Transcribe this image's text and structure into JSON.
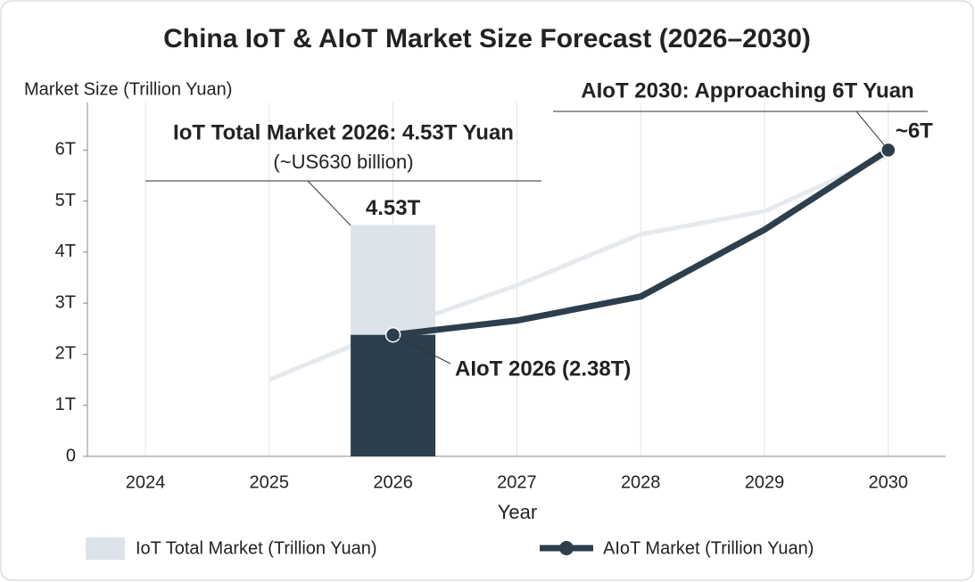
{
  "chart_data": {
    "type": "bar-line",
    "title": "China IoT & AIoT Market Size Forecast (2026–2030)",
    "y_label": "Market Size (Trillion Yuan)",
    "x_label": "Year",
    "categories": [
      "2024",
      "2025",
      "2026",
      "2027",
      "2028",
      "2029",
      "2030"
    ],
    "ylim": [
      0,
      6.6
    ],
    "yticks": [
      0,
      {
        "value": 1,
        "label": "1T"
      },
      {
        "value": 2,
        "label": "2T"
      },
      {
        "value": 3,
        "label": "3T"
      },
      {
        "value": 4,
        "label": "4T"
      },
      {
        "value": 5,
        "label": "5T"
      },
      {
        "value": 6,
        "label": "6T"
      }
    ],
    "grid": true,
    "series": [
      {
        "name": "IoT Total Market (Trillion Yuan)",
        "style": "bar",
        "color": "#dde3ea",
        "values": [
          null,
          null,
          4.53,
          null,
          null,
          null,
          null
        ],
        "value_labels": [
          null,
          null,
          "4.53T",
          null,
          null,
          null,
          null
        ]
      },
      {
        "name": "AIoT Market (Trillion Yuan)",
        "style": "line",
        "color": "#2d3e4c",
        "values": [
          null,
          null,
          2.38,
          2.66,
          3.13,
          4.44,
          6
        ],
        "value_labels": [
          null,
          null,
          null,
          null,
          null,
          null,
          "~6T"
        ]
      },
      {
        "style": "faint-line",
        "color": "#e6e9ed",
        "values": [
          null,
          1.5,
          2.5,
          3.35,
          4.35,
          4.8,
          5.9
        ]
      }
    ],
    "annotations": {
      "iot_2026": "IoT Total Market 2026: 4.53T Yuan",
      "iot_2026_usd": "(~US630 billion)",
      "aiot_2026": "AIoT 2026 (2.38T)",
      "aiot_2030": "AIoT 2030: Approaching 6T Yuan"
    }
  }
}
